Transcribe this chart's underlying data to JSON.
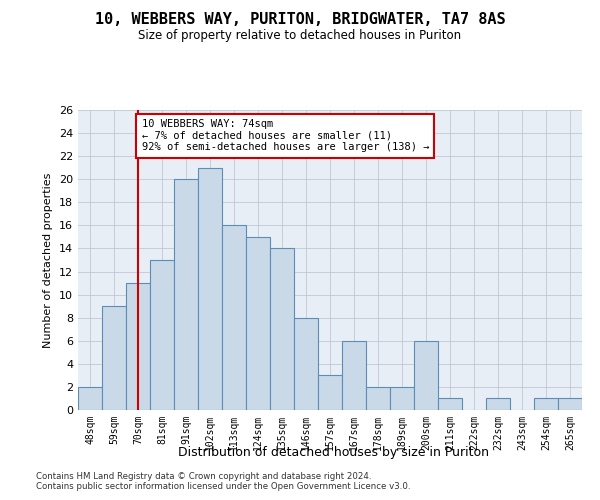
{
  "title": "10, WEBBERS WAY, PURITON, BRIDGWATER, TA7 8AS",
  "subtitle": "Size of property relative to detached houses in Puriton",
  "xlabel": "Distribution of detached houses by size in Puriton",
  "ylabel": "Number of detached properties",
  "categories": [
    "48sqm",
    "59sqm",
    "70sqm",
    "81sqm",
    "91sqm",
    "102sqm",
    "113sqm",
    "124sqm",
    "135sqm",
    "146sqm",
    "157sqm",
    "167sqm",
    "178sqm",
    "189sqm",
    "200sqm",
    "211sqm",
    "222sqm",
    "232sqm",
    "243sqm",
    "254sqm",
    "265sqm"
  ],
  "values": [
    2,
    9,
    11,
    13,
    20,
    21,
    16,
    15,
    14,
    8,
    3,
    6,
    2,
    2,
    6,
    1,
    0,
    1,
    0,
    1,
    1
  ],
  "bar_color": "#c9d9e8",
  "bar_edge_color": "#5b8db8",
  "vline_x": 2,
  "vline_color": "#cc0000",
  "annotation_text": "10 WEBBERS WAY: 74sqm\n← 7% of detached houses are smaller (11)\n92% of semi-detached houses are larger (138) →",
  "annotation_box_color": "#ffffff",
  "annotation_box_edge_color": "#cc0000",
  "ylim": [
    0,
    26
  ],
  "yticks": [
    0,
    2,
    4,
    6,
    8,
    10,
    12,
    14,
    16,
    18,
    20,
    22,
    24,
    26
  ],
  "grid_color": "#c0c8d8",
  "background_color": "#e8eef5",
  "footer1": "Contains HM Land Registry data © Crown copyright and database right 2024.",
  "footer2": "Contains public sector information licensed under the Open Government Licence v3.0."
}
